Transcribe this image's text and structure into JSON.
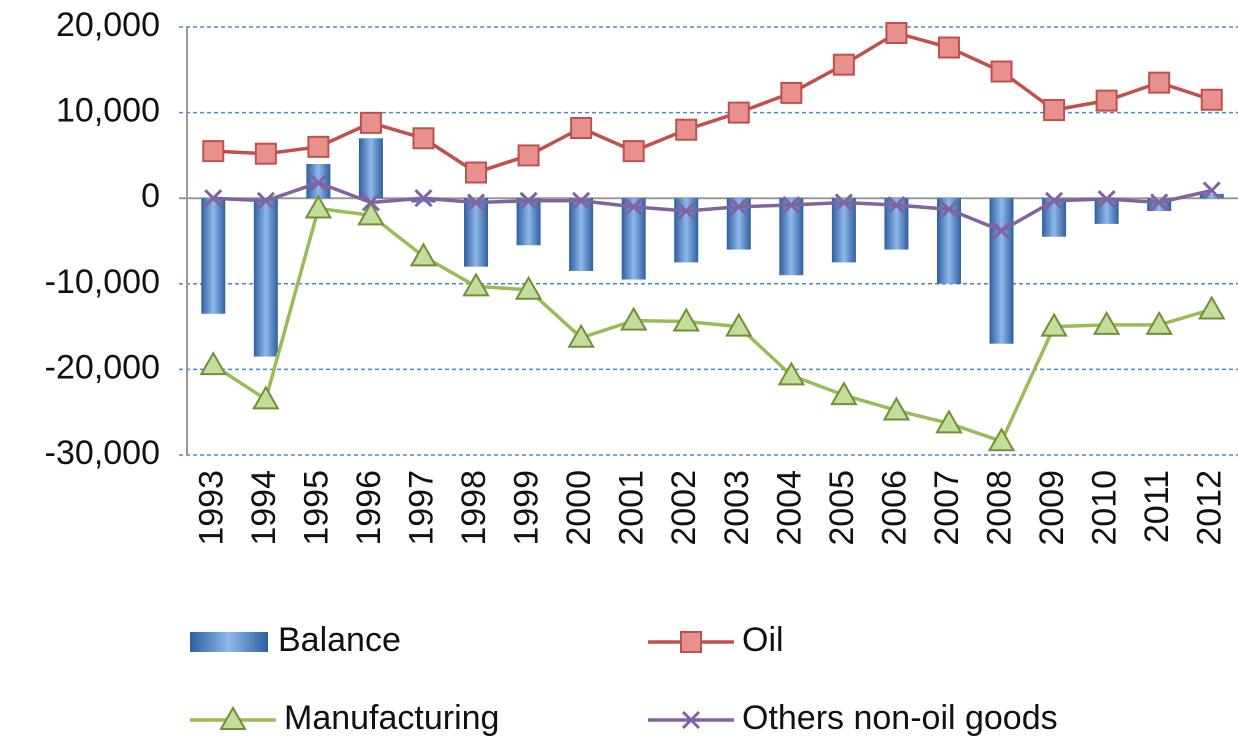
{
  "chart_data": {
    "type": "combo",
    "categories": [
      "1993",
      "1994",
      "1995",
      "1996",
      "1997",
      "1998",
      "1999",
      "2000",
      "2001",
      "2002",
      "2003",
      "2004",
      "2005",
      "2006",
      "2007",
      "2008",
      "2009",
      "2010",
      "2011",
      "2012"
    ],
    "series": [
      {
        "name": "Balance",
        "type": "bar",
        "color": "#4f81bd",
        "values": [
          -13500,
          -18500,
          4000,
          7000,
          -500,
          -8000,
          -5500,
          -8500,
          -9500,
          -7500,
          -6000,
          -9000,
          -7500,
          -6000,
          -10000,
          -17000,
          -4500,
          -3000,
          -1500,
          500
        ]
      },
      {
        "name": "Oil",
        "type": "line",
        "marker": "square",
        "color": "#c0504d",
        "values": [
          5500,
          5200,
          6000,
          8800,
          7000,
          3000,
          5000,
          8200,
          5500,
          8000,
          10000,
          12300,
          15600,
          19300,
          17600,
          14800,
          10300,
          11400,
          13500,
          11500
        ]
      },
      {
        "name": "Manufacturing",
        "type": "line",
        "marker": "triangle",
        "color": "#9bbb59",
        "values": [
          -19500,
          -23500,
          -1200,
          -2000,
          -6800,
          -10300,
          -10700,
          -16300,
          -14300,
          -14400,
          -15000,
          -20700,
          -23000,
          -24800,
          -26300,
          -28400,
          -15000,
          -14800,
          -14800,
          -13000
        ]
      },
      {
        "name": "Others non-oil goods",
        "type": "line",
        "marker": "x",
        "color": "#8064a2",
        "values": [
          0,
          -300,
          1800,
          -500,
          0,
          -500,
          -300,
          -300,
          -1000,
          -1500,
          -1000,
          -800,
          -500,
          -800,
          -1300,
          -3800,
          -300,
          -100,
          -500,
          900
        ]
      }
    ],
    "ylim": [
      -30000,
      20000
    ],
    "yticks": [
      {
        "value": -30000,
        "label": "-30,000"
      },
      {
        "value": -20000,
        "label": "-20,000"
      },
      {
        "value": -10000,
        "label": "-10,000"
      },
      0,
      {
        "value": 10000,
        "label": "10,000"
      },
      {
        "value": 20000,
        "label": "20,000"
      }
    ],
    "grid": true
  }
}
